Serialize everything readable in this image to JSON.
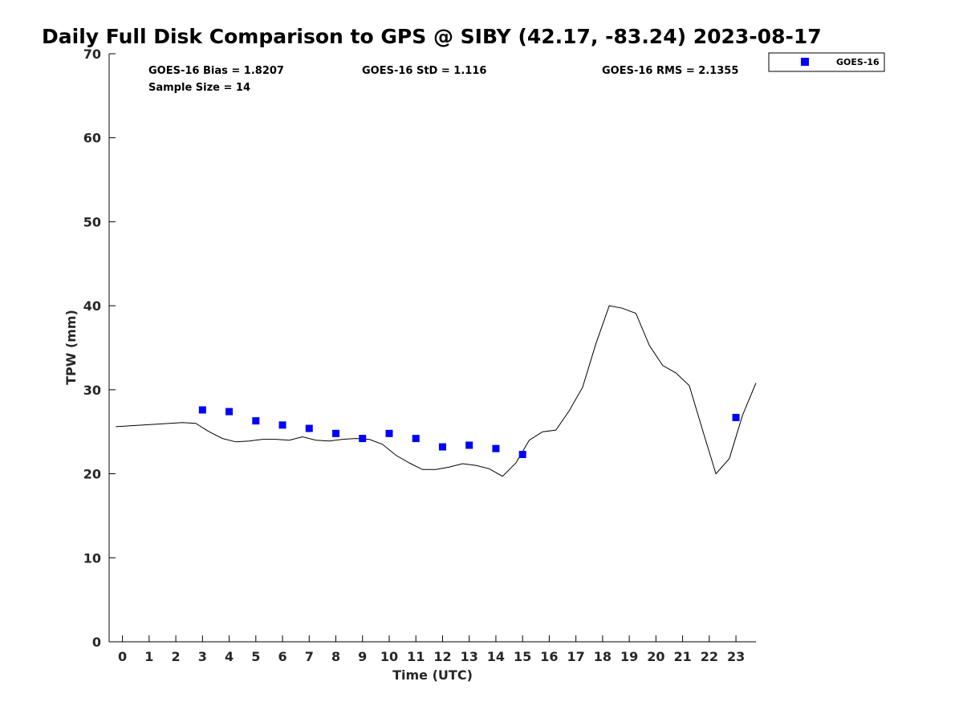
{
  "chart_data": {
    "type": "line",
    "title": "Daily Full Disk Comparison to GPS @ SIBY (42.17, -83.24) 2023-08-17",
    "xlabel": "Time (UTC)",
    "ylabel": "TPW (mm)",
    "xlim": [
      -0.5,
      23.75
    ],
    "ylim": [
      0,
      70
    ],
    "xticks": [
      0,
      1,
      2,
      3,
      4,
      5,
      6,
      7,
      8,
      9,
      10,
      11,
      12,
      13,
      14,
      15,
      16,
      17,
      18,
      19,
      20,
      21,
      22,
      23
    ],
    "yticks": [
      0,
      10,
      20,
      30,
      40,
      50,
      60,
      70
    ],
    "grid": false,
    "legend_position": "top-right-outside",
    "stats": {
      "bias": "GOES-16 Bias = 1.8207",
      "std": "GOES-16 StD = 1.116",
      "rms": "GOES-16 RMS = 2.1355",
      "sample_size": "Sample Size = 14"
    },
    "series": [
      {
        "name": "GPS",
        "style": "line",
        "color": "#000000",
        "x": [
          -0.25,
          2.25,
          2.75,
          3.25,
          3.75,
          4.25,
          4.75,
          5.25,
          5.75,
          6.25,
          6.75,
          7.25,
          7.75,
          8.25,
          8.75,
          9.25,
          9.75,
          10.25,
          10.75,
          11.25,
          11.75,
          12.25,
          12.75,
          13.25,
          13.75,
          14.25,
          14.75,
          15.25,
          15.75,
          16.25,
          16.75,
          17.25,
          17.75,
          18.25,
          18.75,
          19.25,
          19.75,
          20.25,
          20.75,
          21.25,
          21.75,
          22.25,
          22.75,
          23.25,
          23.75
        ],
        "values": [
          25.6,
          26.1,
          26.0,
          25.0,
          24.2,
          23.8,
          23.9,
          24.1,
          24.1,
          24.0,
          24.4,
          24.0,
          23.9,
          24.1,
          24.2,
          24.1,
          23.5,
          22.2,
          21.3,
          20.5,
          20.5,
          20.8,
          21.2,
          21.0,
          20.6,
          19.7,
          21.3,
          24.0,
          25.0,
          25.2,
          27.5,
          30.3,
          35.5,
          40.0,
          39.7,
          39.1,
          35.3,
          32.9,
          32.0,
          30.5,
          25.2,
          20.0,
          21.8,
          27.0,
          30.8
        ]
      },
      {
        "name": "GOES-16",
        "style": "marker",
        "color": "#0000ff",
        "x": [
          3,
          4,
          5,
          6,
          7,
          8,
          9,
          10,
          11,
          12,
          13,
          14,
          15,
          23
        ],
        "values": [
          27.6,
          27.4,
          26.3,
          25.8,
          25.4,
          24.8,
          24.2,
          24.8,
          24.2,
          23.2,
          23.4,
          23.0,
          22.3,
          26.7
        ]
      }
    ],
    "legend": [
      "GOES-16"
    ]
  }
}
